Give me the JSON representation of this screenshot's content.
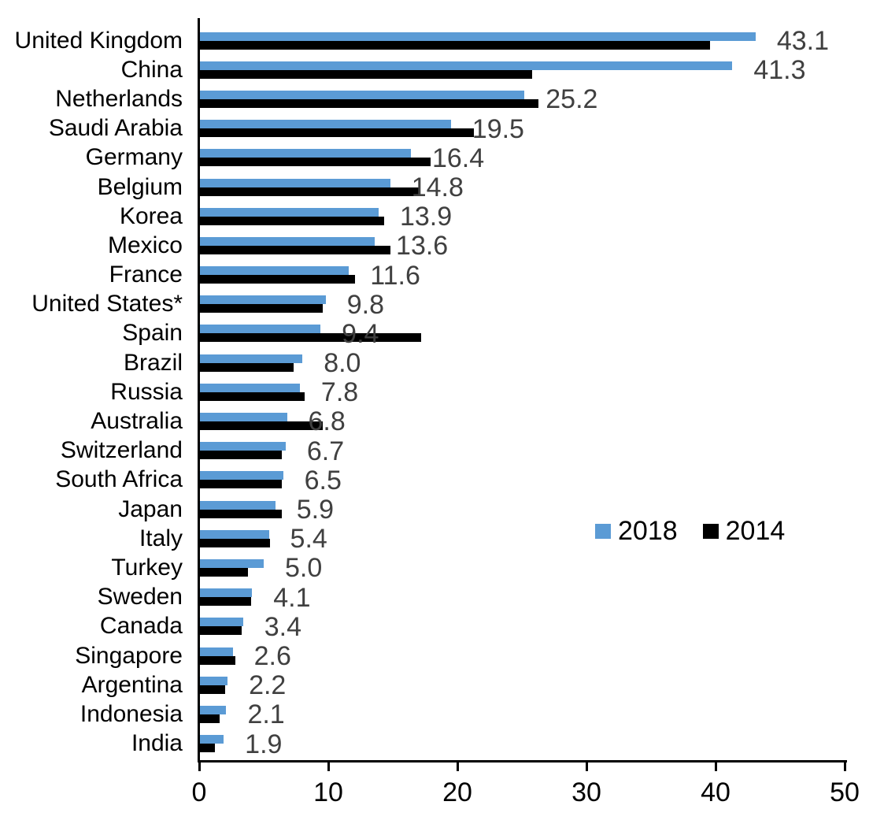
{
  "chart_data": {
    "type": "bar",
    "orientation": "horizontal",
    "title": "",
    "xlabel": "",
    "ylabel": "",
    "xlim": [
      0,
      50
    ],
    "x_ticks": [
      "0",
      "10",
      "20",
      "30",
      "40",
      "50"
    ],
    "x_tick_values": [
      0,
      10,
      20,
      30,
      40,
      50
    ],
    "grid": false,
    "legend_position": "middle-right",
    "categories": [
      "United Kingdom",
      "China",
      "Netherlands",
      "Saudi Arabia",
      "Germany",
      "Belgium",
      "Korea",
      "Mexico",
      "France",
      "United States*",
      "Spain",
      "Brazil",
      "Russia",
      "Australia",
      "Switzerland",
      "South Africa",
      "Japan",
      "Italy",
      "Turkey",
      "Sweden",
      "Canada",
      "Singapore",
      "Argentina",
      "Indonesia",
      "India"
    ],
    "series": [
      {
        "name": "2018",
        "color": "#5B9BD5",
        "values": [
          43.1,
          41.3,
          25.2,
          19.5,
          16.4,
          14.8,
          13.9,
          13.6,
          11.6,
          9.8,
          9.4,
          8.0,
          7.8,
          6.8,
          6.7,
          6.5,
          5.9,
          5.4,
          5.0,
          4.1,
          3.4,
          2.6,
          2.2,
          2.1,
          1.9
        ]
      },
      {
        "name": "2014",
        "color": "#000000",
        "values": [
          39.6,
          25.8,
          26.3,
          21.3,
          17.9,
          17.0,
          14.3,
          14.8,
          12.1,
          9.6,
          17.2,
          7.3,
          8.2,
          9.6,
          6.4,
          6.4,
          6.4,
          5.5,
          3.8,
          4.0,
          3.3,
          2.8,
          2.0,
          1.6,
          1.2
        ]
      }
    ],
    "data_labels": [
      "43.1",
      "41.3",
      "25.2",
      "19.5",
      "16.4",
      "14.8",
      "13.9",
      "13.6",
      "11.6",
      "9.8",
      "9.4",
      "8.0",
      "7.8",
      "6.8",
      "6.7",
      "6.5",
      "5.9",
      "5.4",
      "5.0",
      "4.1",
      "3.4",
      "2.6",
      "2.2",
      "2.1",
      "1.9"
    ],
    "data_labels_series": "2018",
    "legend_entries": [
      {
        "label": "2018",
        "color": "#5B9BD5"
      },
      {
        "label": "2014",
        "color": "#000000"
      }
    ]
  },
  "colors": {
    "bar_2018": "#5B9BD5",
    "bar_2014": "#000000",
    "value_label": "#404040",
    "axis": "#000000",
    "background": "#ffffff"
  }
}
